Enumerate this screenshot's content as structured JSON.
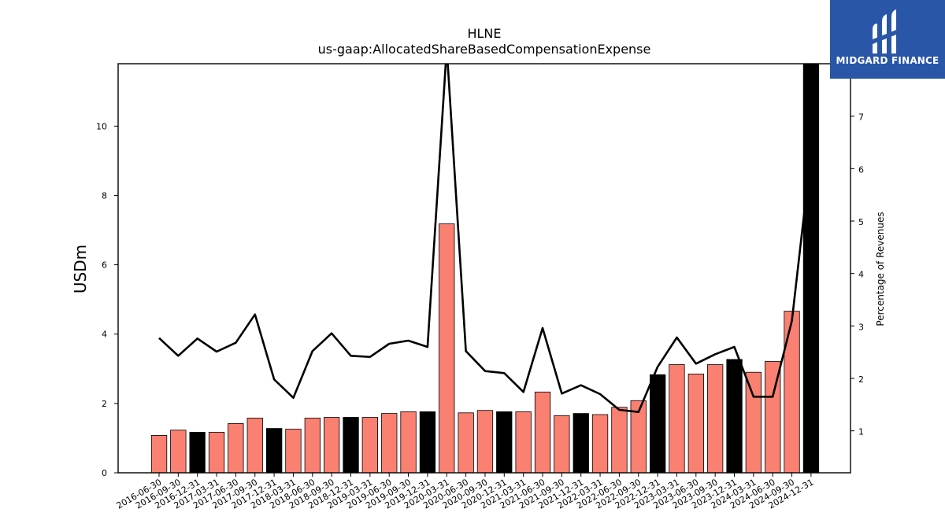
{
  "chart_data": {
    "type": "bar",
    "title": "HLNE",
    "subtitle": "us-gaap:AllocatedShareBasedCompensationExpense",
    "ylabel": "USDm",
    "y2label": "Percentage of Revenues",
    "ylim": [
      0,
      11.8
    ],
    "y2lim": [
      0.2,
      8.0
    ],
    "yticks": [
      0,
      2,
      4,
      6,
      8,
      10
    ],
    "y2ticks": [
      1,
      2,
      3,
      4,
      5,
      6,
      7
    ],
    "categories": [
      "2016-06-30",
      "2016-09-30",
      "2016-12-31",
      "2017-03-31",
      "2017-06-30",
      "2017-09-30",
      "2017-12-31",
      "2018-03-31",
      "2018-06-30",
      "2018-09-30",
      "2018-12-31",
      "2019-03-31",
      "2019-06-30",
      "2019-09-30",
      "2019-12-31",
      "2020-03-31",
      "2020-06-30",
      "2020-09-30",
      "2020-12-31",
      "2021-03-31",
      "2021-06-30",
      "2021-09-30",
      "2021-12-31",
      "2022-03-31",
      "2022-06-30",
      "2022-09-30",
      "2022-12-31",
      "2023-03-31",
      "2023-06-30",
      "2023-09-30",
      "2023-12-31",
      "2024-03-31",
      "2024-06-30",
      "2024-09-30",
      "2024-12-31"
    ],
    "series": [
      {
        "type": "bar",
        "axis": "left",
        "values": [
          1.08,
          1.23,
          1.17,
          1.17,
          1.42,
          1.58,
          1.28,
          1.26,
          1.58,
          1.6,
          1.6,
          1.6,
          1.71,
          1.76,
          1.76,
          7.18,
          1.73,
          1.8,
          1.76,
          1.76,
          2.33,
          1.65,
          1.71,
          1.68,
          1.89,
          2.08,
          2.83,
          3.12,
          2.85,
          3.12,
          3.27,
          2.9,
          3.21,
          4.66,
          11.8
        ],
        "highlight": [
          false,
          false,
          true,
          false,
          false,
          false,
          true,
          false,
          false,
          false,
          true,
          false,
          false,
          false,
          true,
          false,
          false,
          false,
          true,
          false,
          false,
          false,
          true,
          false,
          false,
          false,
          true,
          false,
          false,
          false,
          true,
          false,
          false,
          false,
          true
        ]
      },
      {
        "type": "line",
        "axis": "right",
        "values": [
          2.77,
          2.43,
          2.76,
          2.51,
          2.68,
          3.22,
          1.98,
          1.63,
          2.52,
          2.86,
          2.43,
          2.41,
          2.66,
          2.72,
          2.6,
          8.3,
          2.52,
          2.14,
          2.1,
          1.74,
          2.96,
          1.71,
          1.87,
          1.7,
          1.4,
          1.36,
          2.22,
          2.78,
          2.28,
          2.46,
          2.6,
          1.65,
          1.65,
          3.1,
          6.3
        ]
      }
    ],
    "colors": {
      "bar": "#fa8072",
      "bar_highlight": "#000000",
      "line": "#000000"
    },
    "grid": false
  },
  "logo": {
    "text": "MIDGARD FINANCE"
  }
}
